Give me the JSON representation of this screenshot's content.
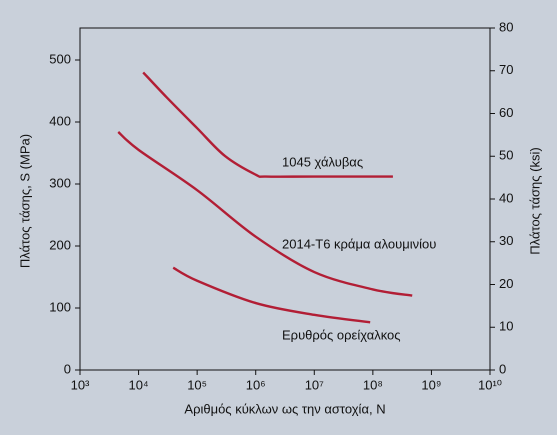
{
  "chart_data": {
    "type": "line",
    "ylabel": "Πλάτος τάσης, S (MPa)",
    "y2label": "Πλάτος τάσης (ksi)",
    "xlabel": "Αριθμός κύκλων ως την αστοχία, N",
    "log_x": true,
    "xlim": [
      1000,
      10000000000
    ],
    "xticks": [
      {
        "value": 1000,
        "label": "10³"
      },
      {
        "value": 10000,
        "label": "10⁴"
      },
      {
        "value": 100000,
        "label": "10⁵"
      },
      {
        "value": 1000000,
        "label": "10⁶"
      },
      {
        "value": 10000000,
        "label": "10⁷"
      },
      {
        "value": 100000000,
        "label": "10⁸"
      },
      {
        "value": 1000000000,
        "label": "10⁹"
      },
      {
        "value": 10000000000,
        "label": "10¹⁰"
      }
    ],
    "ylim": [
      0,
      551.6
    ],
    "yticks": [
      0,
      100,
      200,
      300,
      400,
      500
    ],
    "y2lim": [
      0,
      80
    ],
    "y2ticks": [
      0,
      10,
      20,
      30,
      40,
      50,
      60,
      70,
      80
    ],
    "series": [
      {
        "name": "1045 χάλυβας",
        "color": "#b21e35",
        "x": [
          12000,
          30000,
          100000,
          300000,
          1000000,
          1500000,
          10000000,
          220000000
        ],
        "values": [
          480,
          440,
          390,
          345,
          315,
          312,
          312,
          312
        ]
      },
      {
        "name": "2014-T6 κράμα αλουμινίου",
        "color": "#b21e35",
        "x": [
          4500,
          10000,
          100000,
          1000000,
          10000000,
          100000000,
          470000000
        ],
        "values": [
          384,
          355,
          290,
          215,
          158,
          130,
          120
        ]
      },
      {
        "name": "Ερυθρός ορείχαλκος",
        "color": "#b21e35",
        "x": [
          39000,
          100000,
          1000000,
          10000000,
          90000000
        ],
        "values": [
          165,
          144,
          108,
          89,
          77
        ]
      }
    ]
  }
}
